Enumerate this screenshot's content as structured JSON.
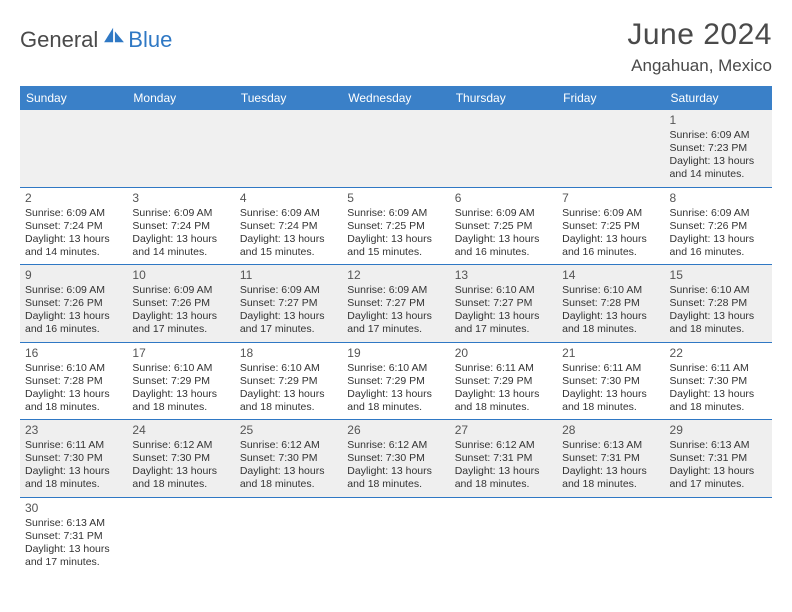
{
  "brand": {
    "general": "General",
    "blue": "Blue",
    "accent": "#2f78c4"
  },
  "title": "June 2024",
  "location": "Angahuan, Mexico",
  "colors": {
    "header_bg": "#3a80c8",
    "header_fg": "#ffffff",
    "rule": "#2f78c4",
    "shade": "#efefef",
    "text": "#333333"
  },
  "weekdays": [
    "Sunday",
    "Monday",
    "Tuesday",
    "Wednesday",
    "Thursday",
    "Friday",
    "Saturday"
  ],
  "weeks": [
    [
      null,
      null,
      null,
      null,
      null,
      null,
      {
        "n": "1",
        "sr": "Sunrise: 6:09 AM",
        "ss": "Sunset: 7:23 PM",
        "d1": "Daylight: 13 hours",
        "d2": "and 14 minutes."
      }
    ],
    [
      {
        "n": "2",
        "sr": "Sunrise: 6:09 AM",
        "ss": "Sunset: 7:24 PM",
        "d1": "Daylight: 13 hours",
        "d2": "and 14 minutes."
      },
      {
        "n": "3",
        "sr": "Sunrise: 6:09 AM",
        "ss": "Sunset: 7:24 PM",
        "d1": "Daylight: 13 hours",
        "d2": "and 14 minutes."
      },
      {
        "n": "4",
        "sr": "Sunrise: 6:09 AM",
        "ss": "Sunset: 7:24 PM",
        "d1": "Daylight: 13 hours",
        "d2": "and 15 minutes."
      },
      {
        "n": "5",
        "sr": "Sunrise: 6:09 AM",
        "ss": "Sunset: 7:25 PM",
        "d1": "Daylight: 13 hours",
        "d2": "and 15 minutes."
      },
      {
        "n": "6",
        "sr": "Sunrise: 6:09 AM",
        "ss": "Sunset: 7:25 PM",
        "d1": "Daylight: 13 hours",
        "d2": "and 16 minutes."
      },
      {
        "n": "7",
        "sr": "Sunrise: 6:09 AM",
        "ss": "Sunset: 7:25 PM",
        "d1": "Daylight: 13 hours",
        "d2": "and 16 minutes."
      },
      {
        "n": "8",
        "sr": "Sunrise: 6:09 AM",
        "ss": "Sunset: 7:26 PM",
        "d1": "Daylight: 13 hours",
        "d2": "and 16 minutes."
      }
    ],
    [
      {
        "n": "9",
        "sr": "Sunrise: 6:09 AM",
        "ss": "Sunset: 7:26 PM",
        "d1": "Daylight: 13 hours",
        "d2": "and 16 minutes."
      },
      {
        "n": "10",
        "sr": "Sunrise: 6:09 AM",
        "ss": "Sunset: 7:26 PM",
        "d1": "Daylight: 13 hours",
        "d2": "and 17 minutes."
      },
      {
        "n": "11",
        "sr": "Sunrise: 6:09 AM",
        "ss": "Sunset: 7:27 PM",
        "d1": "Daylight: 13 hours",
        "d2": "and 17 minutes."
      },
      {
        "n": "12",
        "sr": "Sunrise: 6:09 AM",
        "ss": "Sunset: 7:27 PM",
        "d1": "Daylight: 13 hours",
        "d2": "and 17 minutes."
      },
      {
        "n": "13",
        "sr": "Sunrise: 6:10 AM",
        "ss": "Sunset: 7:27 PM",
        "d1": "Daylight: 13 hours",
        "d2": "and 17 minutes."
      },
      {
        "n": "14",
        "sr": "Sunrise: 6:10 AM",
        "ss": "Sunset: 7:28 PM",
        "d1": "Daylight: 13 hours",
        "d2": "and 18 minutes."
      },
      {
        "n": "15",
        "sr": "Sunrise: 6:10 AM",
        "ss": "Sunset: 7:28 PM",
        "d1": "Daylight: 13 hours",
        "d2": "and 18 minutes."
      }
    ],
    [
      {
        "n": "16",
        "sr": "Sunrise: 6:10 AM",
        "ss": "Sunset: 7:28 PM",
        "d1": "Daylight: 13 hours",
        "d2": "and 18 minutes."
      },
      {
        "n": "17",
        "sr": "Sunrise: 6:10 AM",
        "ss": "Sunset: 7:29 PM",
        "d1": "Daylight: 13 hours",
        "d2": "and 18 minutes."
      },
      {
        "n": "18",
        "sr": "Sunrise: 6:10 AM",
        "ss": "Sunset: 7:29 PM",
        "d1": "Daylight: 13 hours",
        "d2": "and 18 minutes."
      },
      {
        "n": "19",
        "sr": "Sunrise: 6:10 AM",
        "ss": "Sunset: 7:29 PM",
        "d1": "Daylight: 13 hours",
        "d2": "and 18 minutes."
      },
      {
        "n": "20",
        "sr": "Sunrise: 6:11 AM",
        "ss": "Sunset: 7:29 PM",
        "d1": "Daylight: 13 hours",
        "d2": "and 18 minutes."
      },
      {
        "n": "21",
        "sr": "Sunrise: 6:11 AM",
        "ss": "Sunset: 7:30 PM",
        "d1": "Daylight: 13 hours",
        "d2": "and 18 minutes."
      },
      {
        "n": "22",
        "sr": "Sunrise: 6:11 AM",
        "ss": "Sunset: 7:30 PM",
        "d1": "Daylight: 13 hours",
        "d2": "and 18 minutes."
      }
    ],
    [
      {
        "n": "23",
        "sr": "Sunrise: 6:11 AM",
        "ss": "Sunset: 7:30 PM",
        "d1": "Daylight: 13 hours",
        "d2": "and 18 minutes."
      },
      {
        "n": "24",
        "sr": "Sunrise: 6:12 AM",
        "ss": "Sunset: 7:30 PM",
        "d1": "Daylight: 13 hours",
        "d2": "and 18 minutes."
      },
      {
        "n": "25",
        "sr": "Sunrise: 6:12 AM",
        "ss": "Sunset: 7:30 PM",
        "d1": "Daylight: 13 hours",
        "d2": "and 18 minutes."
      },
      {
        "n": "26",
        "sr": "Sunrise: 6:12 AM",
        "ss": "Sunset: 7:30 PM",
        "d1": "Daylight: 13 hours",
        "d2": "and 18 minutes."
      },
      {
        "n": "27",
        "sr": "Sunrise: 6:12 AM",
        "ss": "Sunset: 7:31 PM",
        "d1": "Daylight: 13 hours",
        "d2": "and 18 minutes."
      },
      {
        "n": "28",
        "sr": "Sunrise: 6:13 AM",
        "ss": "Sunset: 7:31 PM",
        "d1": "Daylight: 13 hours",
        "d2": "and 18 minutes."
      },
      {
        "n": "29",
        "sr": "Sunrise: 6:13 AM",
        "ss": "Sunset: 7:31 PM",
        "d1": "Daylight: 13 hours",
        "d2": "and 17 minutes."
      }
    ],
    [
      {
        "n": "30",
        "sr": "Sunrise: 6:13 AM",
        "ss": "Sunset: 7:31 PM",
        "d1": "Daylight: 13 hours",
        "d2": "and 17 minutes."
      },
      null,
      null,
      null,
      null,
      null,
      null
    ]
  ]
}
